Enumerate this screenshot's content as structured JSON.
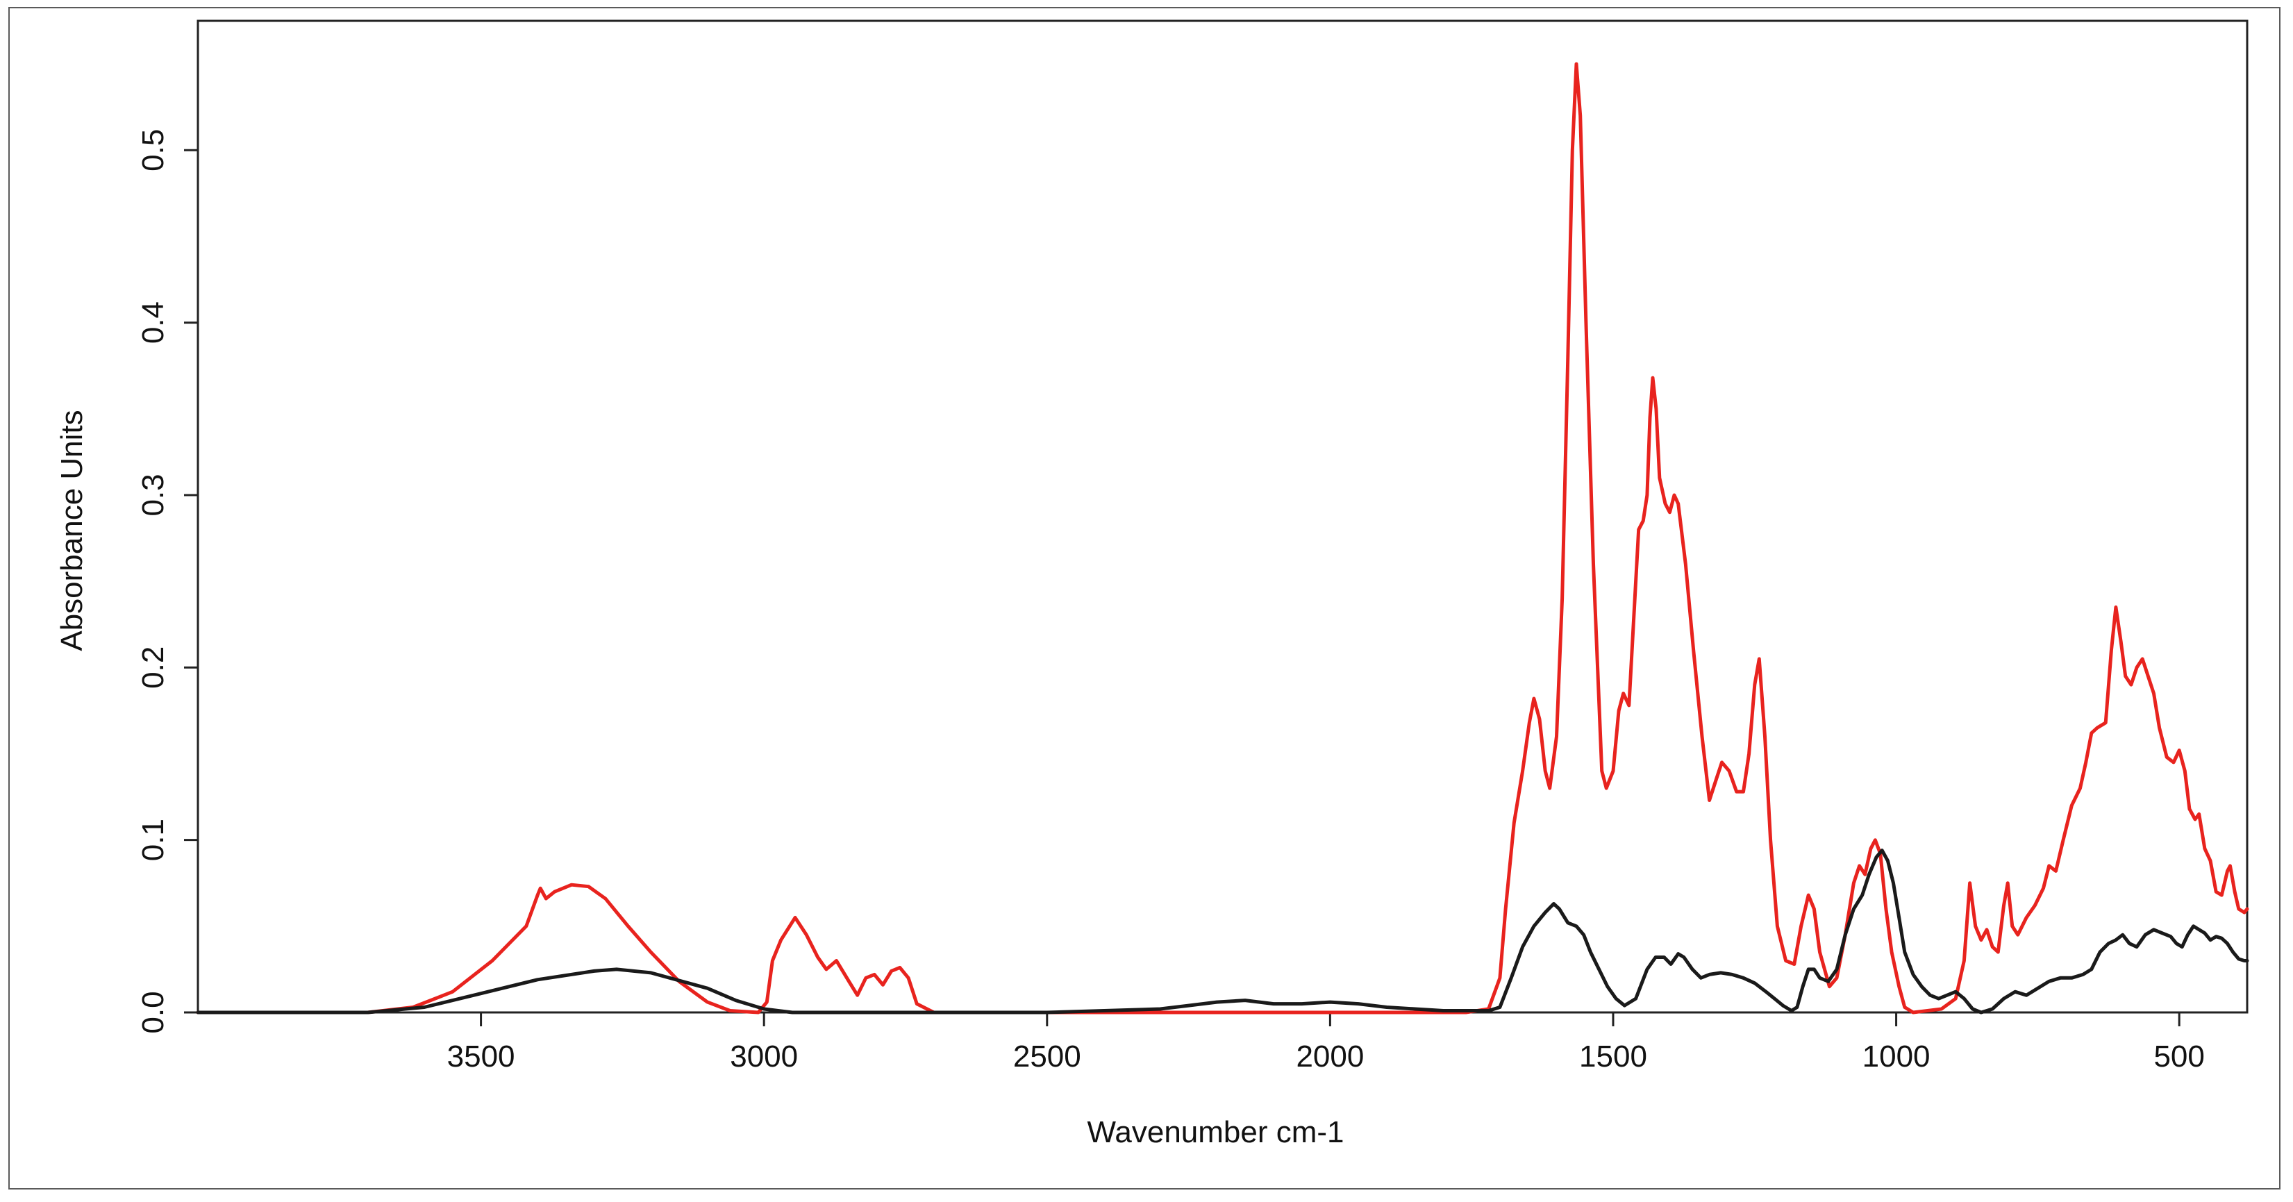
{
  "chart_data": {
    "type": "line",
    "title": "",
    "xlabel": "Wavenumber cm-1",
    "ylabel": "Absorbance Units",
    "xlim": [
      4000,
      380
    ],
    "ylim": [
      0,
      0.575
    ],
    "x_reversed": true,
    "grid": false,
    "legend": "none",
    "x_ticks": [
      3500,
      3000,
      2500,
      2000,
      1500,
      1000,
      500
    ],
    "x_tick_labels": [
      "3500",
      "3000",
      "2500",
      "2000",
      "1500",
      "1000",
      "500"
    ],
    "y_ticks": [
      0.0,
      0.1,
      0.2,
      0.3,
      0.4,
      0.5
    ],
    "y_tick_labels": [
      "0.0",
      "0.1",
      "0.2",
      "0.3",
      "0.4",
      "0.5"
    ],
    "series": [
      {
        "color": "#e8231e",
        "points": [
          [
            4000,
            0
          ],
          [
            3700,
            0
          ],
          [
            3620,
            0.003
          ],
          [
            3550,
            0.012
          ],
          [
            3480,
            0.03
          ],
          [
            3420,
            0.05
          ],
          [
            3400,
            0.068
          ],
          [
            3395,
            0.072
          ],
          [
            3385,
            0.066
          ],
          [
            3370,
            0.07
          ],
          [
            3340,
            0.074
          ],
          [
            3310,
            0.073
          ],
          [
            3280,
            0.066
          ],
          [
            3240,
            0.05
          ],
          [
            3200,
            0.035
          ],
          [
            3150,
            0.018
          ],
          [
            3100,
            0.006
          ],
          [
            3060,
            0.001
          ],
          [
            3010,
            0
          ],
          [
            2995,
            0.006
          ],
          [
            2985,
            0.03
          ],
          [
            2970,
            0.042
          ],
          [
            2945,
            0.055
          ],
          [
            2925,
            0.045
          ],
          [
            2905,
            0.032
          ],
          [
            2890,
            0.025
          ],
          [
            2872,
            0.03
          ],
          [
            2850,
            0.018
          ],
          [
            2835,
            0.01
          ],
          [
            2820,
            0.02
          ],
          [
            2805,
            0.022
          ],
          [
            2790,
            0.016
          ],
          [
            2775,
            0.024
          ],
          [
            2760,
            0.026
          ],
          [
            2745,
            0.02
          ],
          [
            2730,
            0.005
          ],
          [
            2700,
            0
          ],
          [
            1760,
            0
          ],
          [
            1720,
            0.002
          ],
          [
            1700,
            0.02
          ],
          [
            1690,
            0.06
          ],
          [
            1675,
            0.11
          ],
          [
            1660,
            0.14
          ],
          [
            1648,
            0.168
          ],
          [
            1640,
            0.182
          ],
          [
            1630,
            0.17
          ],
          [
            1620,
            0.14
          ],
          [
            1612,
            0.13
          ],
          [
            1600,
            0.16
          ],
          [
            1590,
            0.24
          ],
          [
            1580,
            0.38
          ],
          [
            1572,
            0.5
          ],
          [
            1565,
            0.55
          ],
          [
            1558,
            0.52
          ],
          [
            1548,
            0.4
          ],
          [
            1535,
            0.26
          ],
          [
            1520,
            0.14
          ],
          [
            1512,
            0.13
          ],
          [
            1500,
            0.14
          ],
          [
            1490,
            0.175
          ],
          [
            1482,
            0.185
          ],
          [
            1472,
            0.178
          ],
          [
            1465,
            0.22
          ],
          [
            1455,
            0.28
          ],
          [
            1447,
            0.285
          ],
          [
            1440,
            0.3
          ],
          [
            1435,
            0.345
          ],
          [
            1430,
            0.368
          ],
          [
            1424,
            0.35
          ],
          [
            1418,
            0.31
          ],
          [
            1408,
            0.295
          ],
          [
            1400,
            0.29
          ],
          [
            1392,
            0.3
          ],
          [
            1385,
            0.295
          ],
          [
            1372,
            0.26
          ],
          [
            1358,
            0.21
          ],
          [
            1343,
            0.16
          ],
          [
            1330,
            0.123
          ],
          [
            1318,
            0.135
          ],
          [
            1308,
            0.145
          ],
          [
            1295,
            0.14
          ],
          [
            1282,
            0.128
          ],
          [
            1270,
            0.128
          ],
          [
            1260,
            0.15
          ],
          [
            1250,
            0.19
          ],
          [
            1242,
            0.205
          ],
          [
            1232,
            0.16
          ],
          [
            1222,
            0.1
          ],
          [
            1210,
            0.05
          ],
          [
            1195,
            0.03
          ],
          [
            1180,
            0.028
          ],
          [
            1168,
            0.05
          ],
          [
            1155,
            0.068
          ],
          [
            1145,
            0.06
          ],
          [
            1135,
            0.035
          ],
          [
            1118,
            0.015
          ],
          [
            1105,
            0.02
          ],
          [
            1090,
            0.045
          ],
          [
            1075,
            0.075
          ],
          [
            1065,
            0.085
          ],
          [
            1055,
            0.08
          ],
          [
            1045,
            0.095
          ],
          [
            1037,
            0.1
          ],
          [
            1028,
            0.092
          ],
          [
            1018,
            0.06
          ],
          [
            1008,
            0.035
          ],
          [
            995,
            0.015
          ],
          [
            985,
            0.003
          ],
          [
            970,
            0
          ],
          [
            920,
            0.002
          ],
          [
            895,
            0.008
          ],
          [
            880,
            0.03
          ],
          [
            870,
            0.075
          ],
          [
            860,
            0.05
          ],
          [
            850,
            0.042
          ],
          [
            840,
            0.048
          ],
          [
            830,
            0.038
          ],
          [
            820,
            0.035
          ],
          [
            810,
            0.062
          ],
          [
            803,
            0.075
          ],
          [
            795,
            0.05
          ],
          [
            785,
            0.045
          ],
          [
            770,
            0.055
          ],
          [
            755,
            0.062
          ],
          [
            740,
            0.072
          ],
          [
            730,
            0.085
          ],
          [
            718,
            0.082
          ],
          [
            705,
            0.1
          ],
          [
            690,
            0.12
          ],
          [
            675,
            0.13
          ],
          [
            665,
            0.145
          ],
          [
            655,
            0.162
          ],
          [
            645,
            0.165
          ],
          [
            630,
            0.168
          ],
          [
            620,
            0.21
          ],
          [
            612,
            0.235
          ],
          [
            603,
            0.215
          ],
          [
            595,
            0.195
          ],
          [
            585,
            0.19
          ],
          [
            575,
            0.2
          ],
          [
            565,
            0.205
          ],
          [
            555,
            0.195
          ],
          [
            545,
            0.185
          ],
          [
            535,
            0.165
          ],
          [
            522,
            0.148
          ],
          [
            510,
            0.145
          ],
          [
            500,
            0.152
          ],
          [
            490,
            0.14
          ],
          [
            482,
            0.118
          ],
          [
            472,
            0.112
          ],
          [
            465,
            0.115
          ],
          [
            455,
            0.095
          ],
          [
            445,
            0.088
          ],
          [
            435,
            0.07
          ],
          [
            425,
            0.068
          ],
          [
            415,
            0.082
          ],
          [
            410,
            0.085
          ],
          [
            402,
            0.07
          ],
          [
            395,
            0.06
          ],
          [
            385,
            0.058
          ],
          [
            380,
            0.06
          ]
        ]
      },
      {
        "color": "#1a1a1a",
        "points": [
          [
            4000,
            0
          ],
          [
            3700,
            0
          ],
          [
            3600,
            0.003
          ],
          [
            3500,
            0.011
          ],
          [
            3400,
            0.019
          ],
          [
            3300,
            0.024
          ],
          [
            3260,
            0.025
          ],
          [
            3200,
            0.023
          ],
          [
            3100,
            0.014
          ],
          [
            3050,
            0.007
          ],
          [
            3000,
            0.002
          ],
          [
            2950,
            0
          ],
          [
            2500,
            0
          ],
          [
            2300,
            0.002
          ],
          [
            2250,
            0.004
          ],
          [
            2200,
            0.006
          ],
          [
            2150,
            0.007
          ],
          [
            2100,
            0.005
          ],
          [
            2050,
            0.005
          ],
          [
            2000,
            0.006
          ],
          [
            1950,
            0.005
          ],
          [
            1900,
            0.003
          ],
          [
            1850,
            0.002
          ],
          [
            1800,
            0.001
          ],
          [
            1720,
            0.001
          ],
          [
            1700,
            0.003
          ],
          [
            1680,
            0.02
          ],
          [
            1660,
            0.038
          ],
          [
            1640,
            0.05
          ],
          [
            1620,
            0.058
          ],
          [
            1605,
            0.063
          ],
          [
            1595,
            0.06
          ],
          [
            1580,
            0.052
          ],
          [
            1565,
            0.05
          ],
          [
            1552,
            0.045
          ],
          [
            1540,
            0.035
          ],
          [
            1525,
            0.025
          ],
          [
            1510,
            0.015
          ],
          [
            1495,
            0.008
          ],
          [
            1480,
            0.004
          ],
          [
            1460,
            0.008
          ],
          [
            1440,
            0.025
          ],
          [
            1425,
            0.032
          ],
          [
            1410,
            0.032
          ],
          [
            1398,
            0.028
          ],
          [
            1385,
            0.034
          ],
          [
            1375,
            0.032
          ],
          [
            1360,
            0.025
          ],
          [
            1345,
            0.02
          ],
          [
            1330,
            0.022
          ],
          [
            1310,
            0.023
          ],
          [
            1290,
            0.022
          ],
          [
            1270,
            0.02
          ],
          [
            1250,
            0.017
          ],
          [
            1230,
            0.012
          ],
          [
            1215,
            0.008
          ],
          [
            1200,
            0.004
          ],
          [
            1185,
            0.001
          ],
          [
            1175,
            0.003
          ],
          [
            1165,
            0.015
          ],
          [
            1155,
            0.025
          ],
          [
            1145,
            0.025
          ],
          [
            1135,
            0.02
          ],
          [
            1120,
            0.018
          ],
          [
            1105,
            0.025
          ],
          [
            1090,
            0.045
          ],
          [
            1075,
            0.06
          ],
          [
            1060,
            0.068
          ],
          [
            1048,
            0.08
          ],
          [
            1035,
            0.09
          ],
          [
            1025,
            0.094
          ],
          [
            1015,
            0.088
          ],
          [
            1005,
            0.075
          ],
          [
            995,
            0.055
          ],
          [
            985,
            0.035
          ],
          [
            970,
            0.022
          ],
          [
            955,
            0.015
          ],
          [
            940,
            0.01
          ],
          [
            925,
            0.008
          ],
          [
            910,
            0.01
          ],
          [
            895,
            0.012
          ],
          [
            880,
            0.008
          ],
          [
            865,
            0.002
          ],
          [
            850,
            0
          ],
          [
            830,
            0.002
          ],
          [
            810,
            0.008
          ],
          [
            790,
            0.012
          ],
          [
            770,
            0.01
          ],
          [
            750,
            0.014
          ],
          [
            730,
            0.018
          ],
          [
            710,
            0.02
          ],
          [
            690,
            0.02
          ],
          [
            670,
            0.022
          ],
          [
            655,
            0.025
          ],
          [
            640,
            0.035
          ],
          [
            625,
            0.04
          ],
          [
            612,
            0.042
          ],
          [
            600,
            0.045
          ],
          [
            588,
            0.04
          ],
          [
            575,
            0.038
          ],
          [
            560,
            0.045
          ],
          [
            545,
            0.048
          ],
          [
            530,
            0.046
          ],
          [
            515,
            0.044
          ],
          [
            505,
            0.04
          ],
          [
            495,
            0.038
          ],
          [
            485,
            0.045
          ],
          [
            475,
            0.05
          ],
          [
            465,
            0.048
          ],
          [
            455,
            0.046
          ],
          [
            445,
            0.042
          ],
          [
            435,
            0.044
          ],
          [
            425,
            0.043
          ],
          [
            415,
            0.04
          ],
          [
            405,
            0.035
          ],
          [
            395,
            0.031
          ],
          [
            385,
            0.03
          ],
          [
            380,
            0.03
          ]
        ]
      }
    ]
  }
}
